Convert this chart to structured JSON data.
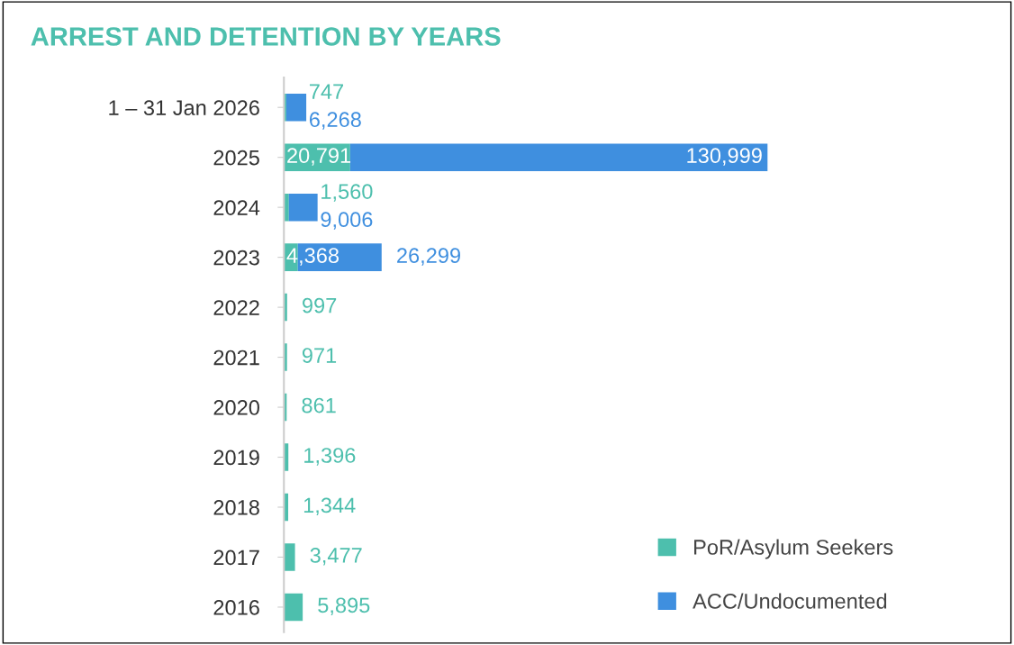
{
  "chart_data": {
    "type": "bar",
    "orientation": "horizontal",
    "stacked": true,
    "title": "ARREST AND DETENTION BY YEARS",
    "categories": [
      "1 – 31 Jan 2026",
      "2025",
      "2024",
      "2023",
      "2022",
      "2021",
      "2020",
      "2019",
      "2018",
      "2017",
      "2016"
    ],
    "series": [
      {
        "name": "PoR/Asylum Seekers",
        "color": "#4dbfad",
        "values": [
          747,
          20791,
          1560,
          4368,
          997,
          971,
          861,
          1396,
          1344,
          3477,
          5895
        ],
        "value_labels": [
          "747",
          "20,791",
          "1,560",
          "4,368",
          "997",
          "971",
          "861",
          "1,396",
          "1,344",
          "3,477",
          "5,895"
        ]
      },
      {
        "name": "ACC/Undocumented",
        "color": "#3f8fdf",
        "values": [
          6268,
          130999,
          9006,
          26299,
          null,
          null,
          null,
          null,
          null,
          null,
          null
        ],
        "value_labels": [
          "6,268",
          "130,999",
          "9,006",
          "26,299",
          null,
          null,
          null,
          null,
          null,
          null,
          null
        ]
      }
    ],
    "legend": "bottom right"
  }
}
